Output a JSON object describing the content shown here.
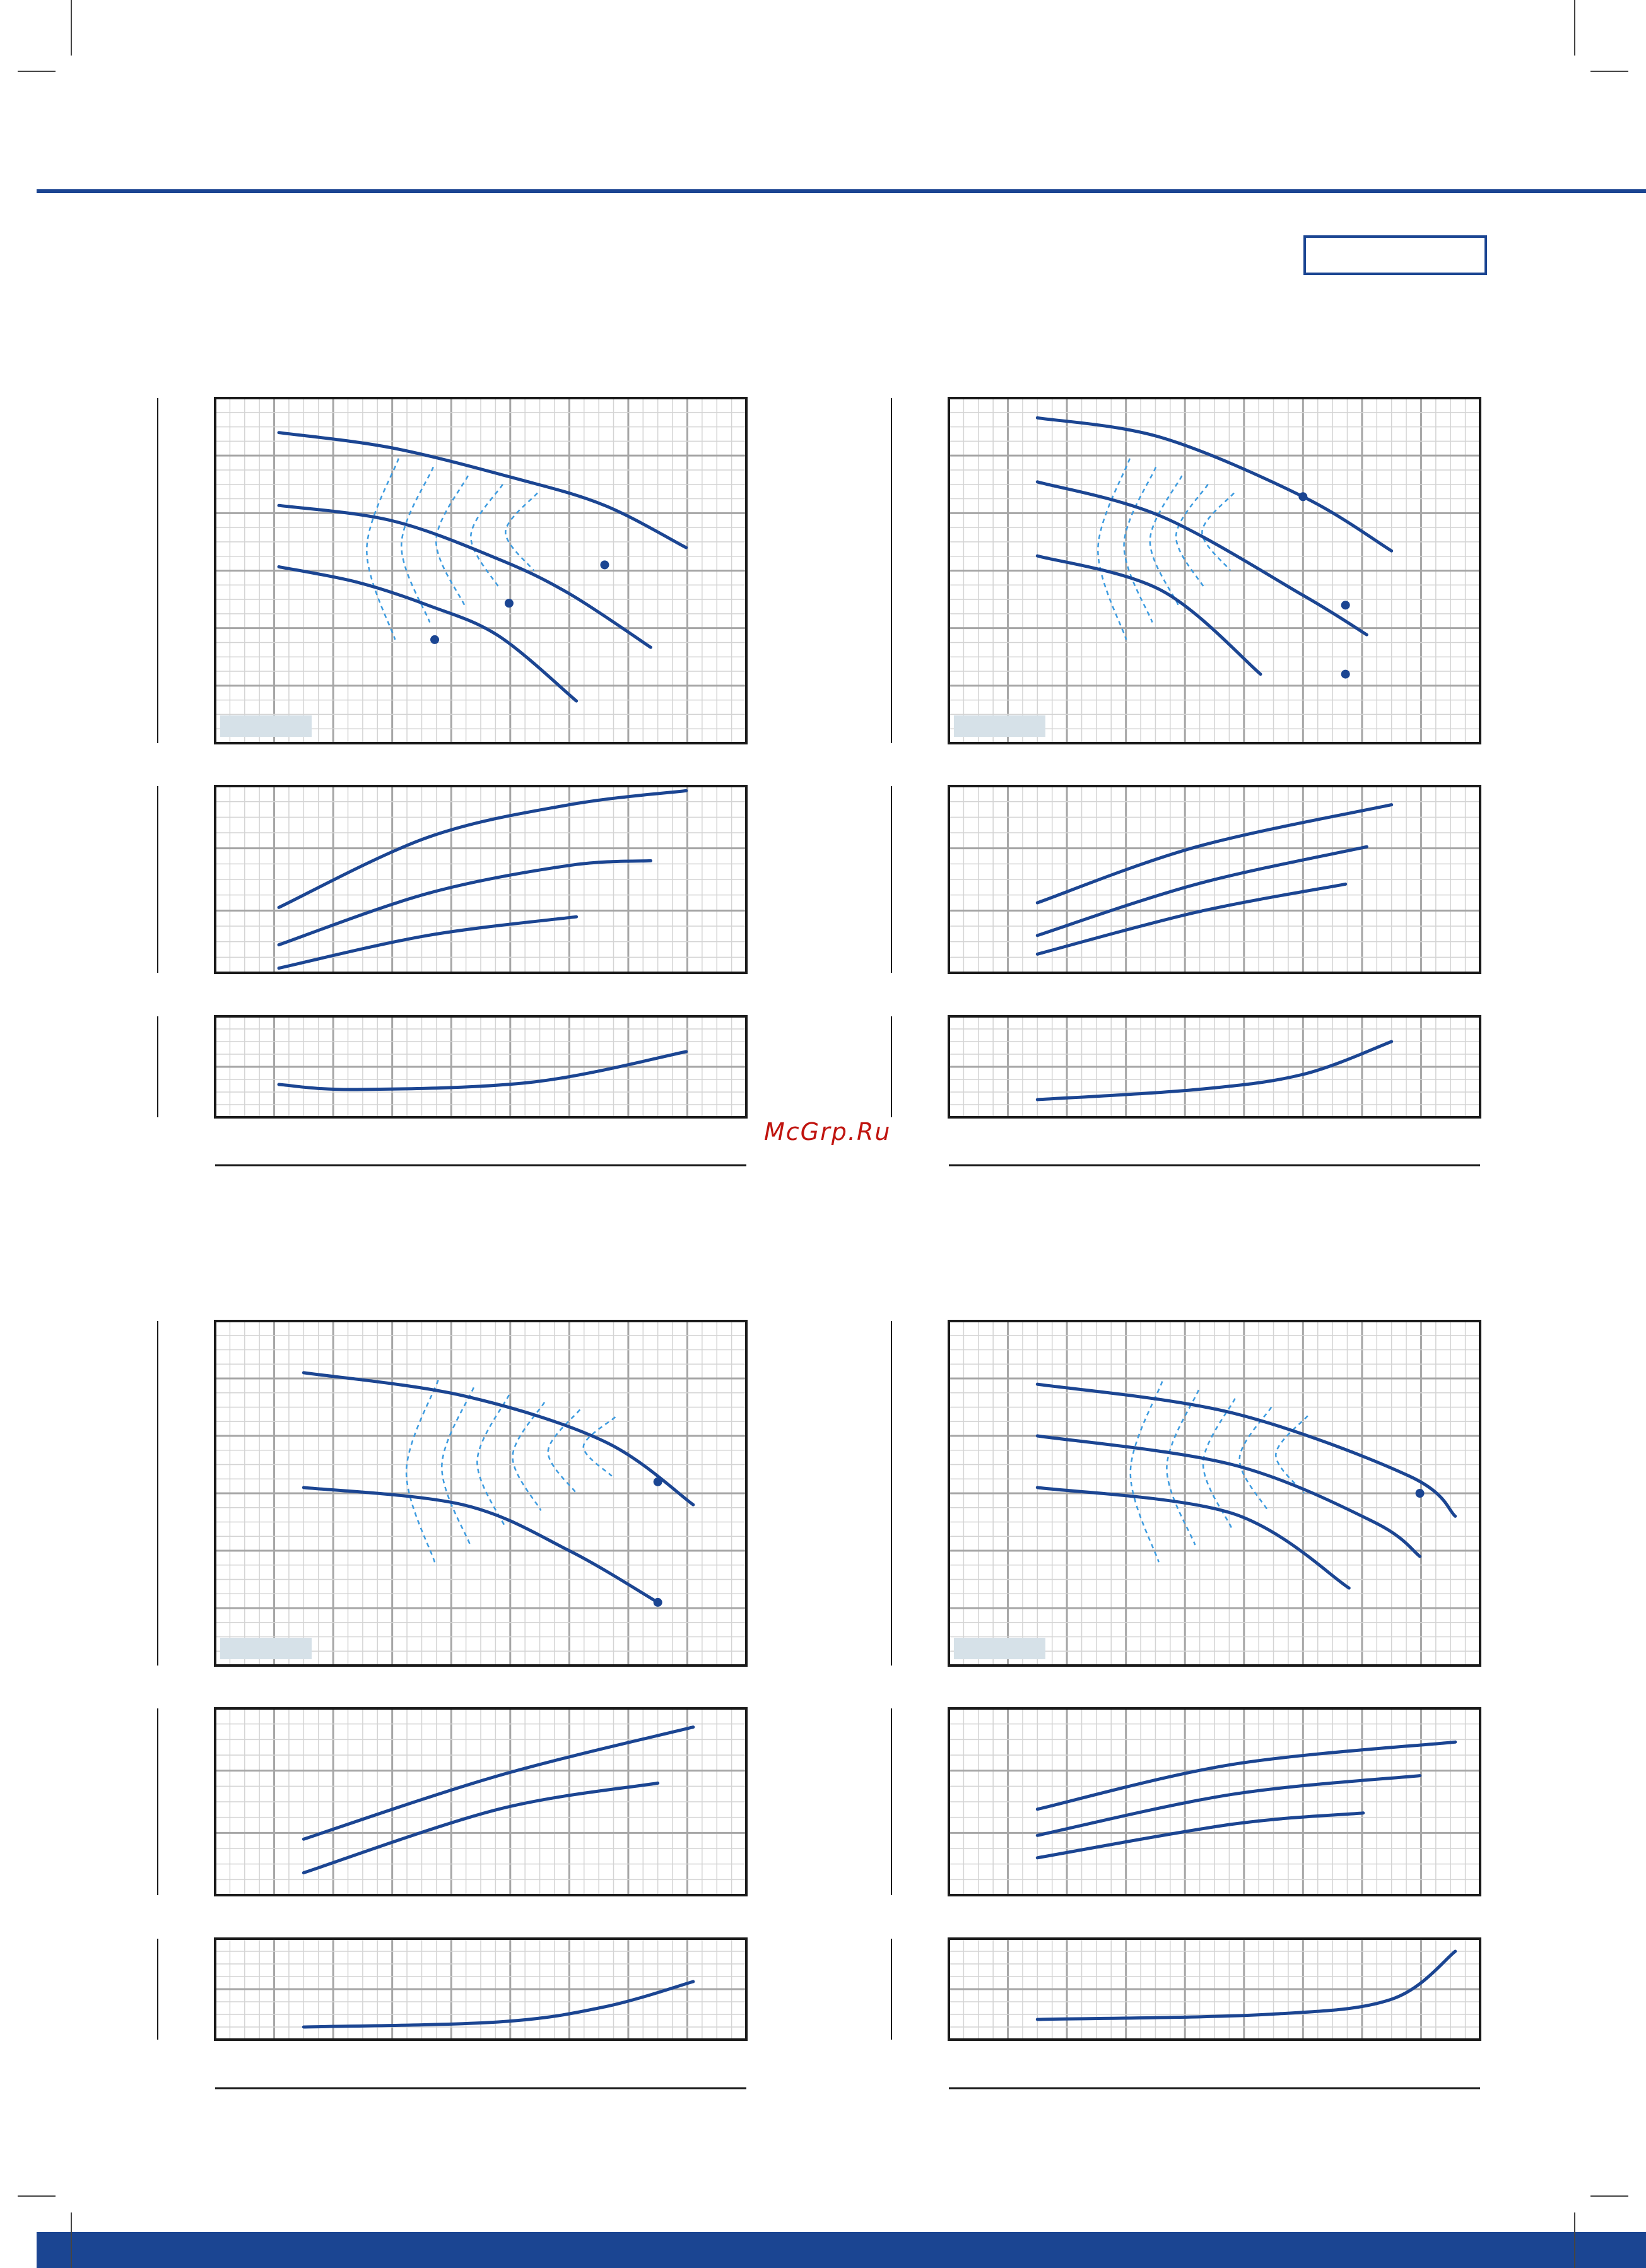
{
  "watermark": "McGrp.Ru",
  "colors": {
    "brand_blue": "#1b4592",
    "curve_blue": "#1b4592",
    "efficiency_dash": "#3c9be0",
    "grid_major": "#a6a6a6",
    "grid_minor": "#d4d4d4",
    "frame": "#1a1a1a",
    "label_box": "#d6e1e8"
  },
  "chart_data": [
    {
      "type": "line",
      "panel": "performance-curves-top-left",
      "series": [
        {
          "values": [
            [
              0.18,
              8.1
            ],
            [
              0.5,
              7.7
            ],
            [
              0.85,
              6.9
            ],
            [
              1.1,
              6.2
            ],
            [
              1.33,
              5.1
            ]
          ]
        },
        {
          "values": [
            [
              0.18,
              6.2
            ],
            [
              0.5,
              5.8
            ],
            [
              0.8,
              4.8
            ],
            [
              1.0,
              3.9
            ],
            [
              1.23,
              2.5
            ]
          ]
        },
        {
          "values": [
            [
              0.18,
              4.6
            ],
            [
              0.4,
              4.2
            ],
            [
              0.6,
              3.6
            ],
            [
              0.8,
              2.8
            ],
            [
              1.02,
              1.1
            ]
          ]
        }
      ],
      "efficiency_contours": 5,
      "markers": [
        [
          1.1,
          4.65
        ],
        [
          0.83,
          3.65
        ],
        [
          0.62,
          2.7
        ]
      ],
      "ylim": [
        0,
        9
      ],
      "xlim": [
        0,
        1.5
      ]
    },
    {
      "type": "line",
      "panel": "power-curves-top-left",
      "series": [
        {
          "values": [
            [
              0.18,
              1.4
            ],
            [
              0.6,
              2.9
            ],
            [
              1.0,
              3.6
            ],
            [
              1.33,
              3.9
            ]
          ]
        },
        {
          "values": [
            [
              0.18,
              0.6
            ],
            [
              0.6,
              1.7
            ],
            [
              1.0,
              2.3
            ],
            [
              1.23,
              2.4
            ]
          ]
        },
        {
          "values": [
            [
              0.18,
              0.1
            ],
            [
              0.6,
              0.8
            ],
            [
              1.02,
              1.2
            ]
          ]
        }
      ],
      "ylim": [
        0,
        4
      ],
      "xlim": [
        0,
        1.5
      ]
    },
    {
      "type": "line",
      "panel": "npsh-curve-top-left",
      "series": [
        {
          "values": [
            [
              0.18,
              1.3
            ],
            [
              0.4,
              1.1
            ],
            [
              0.9,
              1.4
            ],
            [
              1.33,
              2.6
            ]
          ]
        }
      ],
      "ylim": [
        0,
        4
      ],
      "xlim": [
        0,
        1.5
      ]
    },
    {
      "type": "line",
      "panel": "performance-curves-top-right",
      "series": [
        {
          "values": [
            [
              0.25,
              6.6
            ],
            [
              0.6,
              6.2
            ],
            [
              1.0,
              5.0
            ],
            [
              1.25,
              3.9
            ]
          ]
        },
        {
          "values": [
            [
              0.25,
              5.3
            ],
            [
              0.6,
              4.6
            ],
            [
              1.0,
              3.0
            ],
            [
              1.18,
              2.2
            ]
          ]
        },
        {
          "values": [
            [
              0.25,
              3.8
            ],
            [
              0.6,
              3.1
            ],
            [
              0.88,
              1.4
            ]
          ]
        }
      ],
      "efficiency_contours": 5,
      "markers": [
        [
          1.0,
          5.0
        ],
        [
          1.12,
          2.8
        ],
        [
          1.12,
          1.4
        ]
      ],
      "ylim": [
        0,
        7
      ],
      "xlim": [
        0,
        1.5
      ]
    },
    {
      "type": "line",
      "panel": "power-curves-top-right",
      "series": [
        {
          "values": [
            [
              0.25,
              1.5
            ],
            [
              0.7,
              2.7
            ],
            [
              1.25,
              3.6
            ]
          ]
        },
        {
          "values": [
            [
              0.25,
              0.8
            ],
            [
              0.7,
              1.9
            ],
            [
              1.18,
              2.7
            ]
          ]
        },
        {
          "values": [
            [
              0.25,
              0.4
            ],
            [
              0.7,
              1.3
            ],
            [
              1.12,
              1.9
            ]
          ]
        }
      ],
      "ylim": [
        0,
        4
      ],
      "xlim": [
        0,
        1.5
      ]
    },
    {
      "type": "line",
      "panel": "npsh-curve-top-right",
      "series": [
        {
          "values": [
            [
              0.25,
              0.7
            ],
            [
              0.7,
              1.1
            ],
            [
              1.0,
              1.7
            ],
            [
              1.25,
              3.0
            ]
          ]
        }
      ],
      "ylim": [
        0,
        4
      ],
      "xlim": [
        0,
        1.5
      ]
    },
    {
      "type": "line",
      "panel": "performance-curves-bottom-left",
      "series": [
        {
          "values": [
            [
              0.25,
              5.1
            ],
            [
              0.7,
              4.7
            ],
            [
              1.1,
              3.9
            ],
            [
              1.35,
              2.8
            ]
          ]
        },
        {
          "values": [
            [
              0.25,
              3.1
            ],
            [
              0.7,
              2.8
            ],
            [
              1.0,
              2.0
            ],
            [
              1.25,
              1.1
            ]
          ]
        }
      ],
      "efficiency_contours": 6,
      "markers": [
        [
          1.25,
          3.2
        ],
        [
          1.25,
          1.1
        ]
      ],
      "ylim": [
        0,
        6
      ],
      "xlim": [
        0,
        1.5
      ]
    },
    {
      "type": "line",
      "panel": "power-curves-bottom-left",
      "series": [
        {
          "values": [
            [
              0.25,
              1.5
            ],
            [
              0.8,
              3.2
            ],
            [
              1.35,
              4.5
            ]
          ]
        },
        {
          "values": [
            [
              0.25,
              0.6
            ],
            [
              0.8,
              2.3
            ],
            [
              1.25,
              3.0
            ]
          ]
        }
      ],
      "ylim": [
        0,
        5
      ],
      "xlim": [
        0,
        1.5
      ]
    },
    {
      "type": "line",
      "panel": "npsh-curve-bottom-left",
      "series": [
        {
          "values": [
            [
              0.25,
              0.5
            ],
            [
              0.8,
              0.7
            ],
            [
              1.1,
              1.3
            ],
            [
              1.35,
              2.3
            ]
          ]
        }
      ],
      "ylim": [
        0,
        4
      ],
      "xlim": [
        0,
        1.5
      ]
    },
    {
      "type": "line",
      "panel": "performance-curves-bottom-right",
      "series": [
        {
          "values": [
            [
              0.25,
              9.8
            ],
            [
              0.8,
              8.8
            ],
            [
              1.3,
              6.6
            ],
            [
              1.43,
              5.2
            ]
          ]
        },
        {
          "values": [
            [
              0.25,
              8.0
            ],
            [
              0.8,
              7.0
            ],
            [
              1.2,
              5.0
            ],
            [
              1.33,
              3.8
            ]
          ]
        },
        {
          "values": [
            [
              0.25,
              6.2
            ],
            [
              0.8,
              5.3
            ],
            [
              1.13,
              2.7
            ]
          ]
        }
      ],
      "efficiency_contours": 5,
      "markers": [
        [
          1.33,
          6.0
        ]
      ],
      "ylim": [
        0,
        12
      ],
      "xlim": [
        0,
        1.5
      ]
    },
    {
      "type": "line",
      "panel": "power-curves-bottom-right",
      "series": [
        {
          "values": [
            [
              0.25,
              2.3
            ],
            [
              0.8,
              3.5
            ],
            [
              1.43,
              4.1
            ]
          ]
        },
        {
          "values": [
            [
              0.25,
              1.6
            ],
            [
              0.8,
              2.7
            ],
            [
              1.33,
              3.2
            ]
          ]
        },
        {
          "values": [
            [
              0.25,
              1.0
            ],
            [
              0.8,
              1.9
            ],
            [
              1.17,
              2.2
            ]
          ]
        }
      ],
      "ylim": [
        0,
        5
      ],
      "xlim": [
        0,
        1.5
      ]
    },
    {
      "type": "line",
      "panel": "npsh-curve-bottom-right",
      "series": [
        {
          "values": [
            [
              0.25,
              0.8
            ],
            [
              0.9,
              1.0
            ],
            [
              1.25,
              1.6
            ],
            [
              1.43,
              3.5
            ]
          ]
        }
      ],
      "ylim": [
        0,
        4
      ],
      "xlim": [
        0,
        1.5
      ]
    }
  ]
}
